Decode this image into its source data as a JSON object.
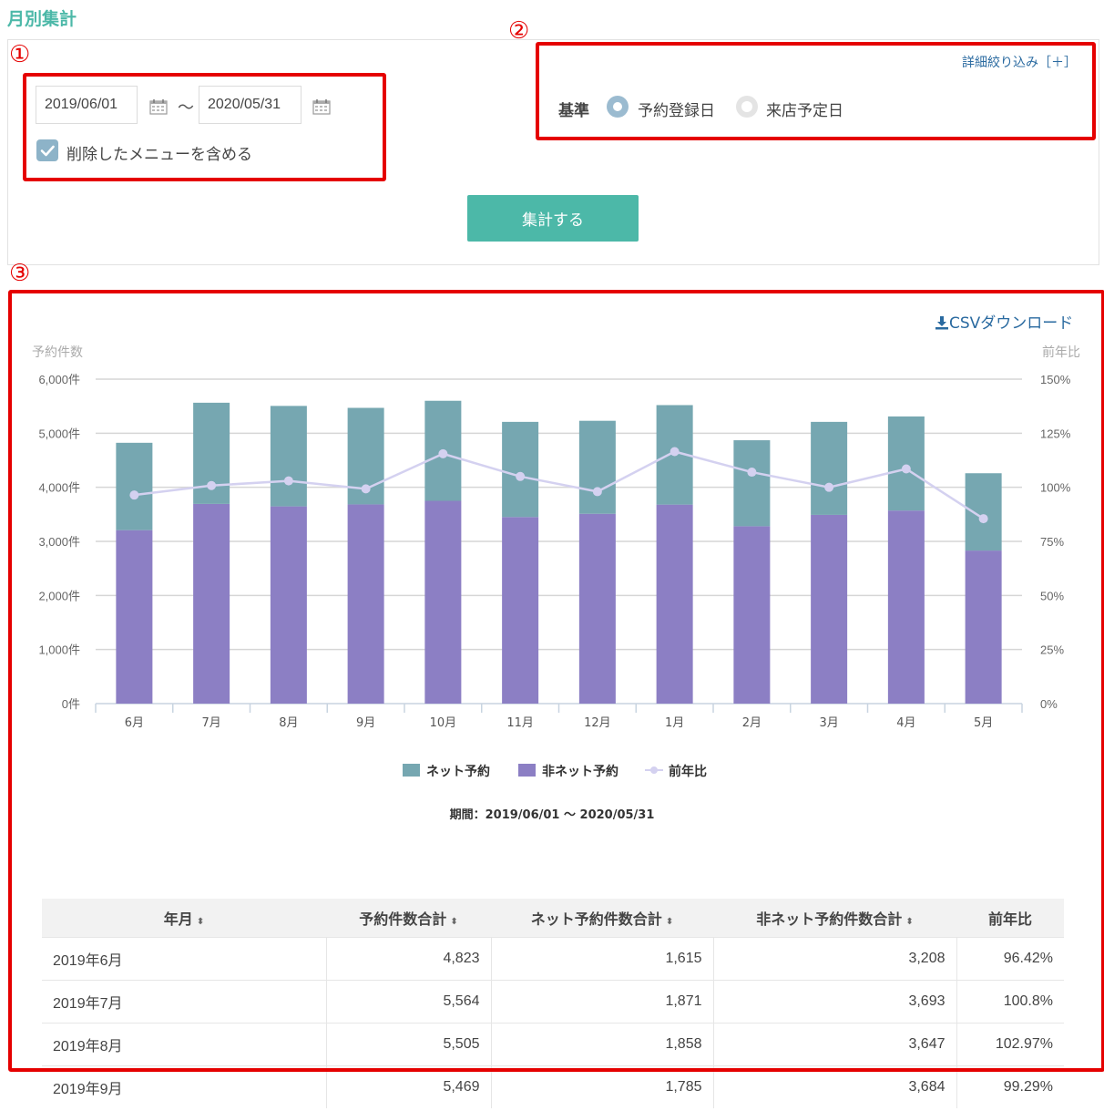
{
  "page": {
    "title": "月別集計"
  },
  "annotations": {
    "n1": "①",
    "n2": "②",
    "n3": "③"
  },
  "filter": {
    "start_date": "2019/06/01",
    "end_date": "2020/05/31",
    "separator": "～",
    "include_deleted_label": "削除したメニューを含める",
    "include_deleted_checked": true,
    "detail_link": "詳細絞り込み［＋］",
    "basis_label": "基準",
    "basis_options": [
      "予約登録日",
      "来店予定日"
    ],
    "basis_selected": "予約登録日",
    "submit_label": "集計する"
  },
  "csv_download_label": "CSVダウンロード",
  "colors": {
    "accent": "#4cb8a8",
    "net": "#76a7b1",
    "nonnet": "#8c7fc4",
    "ratio": "#d4d1f0",
    "annotation": "#e50000"
  },
  "chart_data": {
    "type": "bar",
    "stacked": true,
    "title": "",
    "subtitle": "期間：2019/06/01 ～ 2020/05/31",
    "ylabel": "予約件数",
    "y2label": "前年比",
    "ylim": [
      0,
      6000
    ],
    "y2lim": [
      0,
      150
    ],
    "yticks": [
      "0件",
      "1,000件",
      "2,000件",
      "3,000件",
      "4,000件",
      "5,000件",
      "6,000件"
    ],
    "y2ticks": [
      "0%",
      "25%",
      "50%",
      "75%",
      "100%",
      "125%",
      "150%"
    ],
    "categories": [
      "6月",
      "7月",
      "8月",
      "9月",
      "10月",
      "11月",
      "12月",
      "1月",
      "2月",
      "3月",
      "4月",
      "5月"
    ],
    "series": [
      {
        "name": "非ネット予約",
        "type": "bar",
        "values": [
          3208,
          3693,
          3647,
          3684,
          3750,
          3450,
          3510,
          3680,
          3280,
          3490,
          3570,
          2830
        ]
      },
      {
        "name": "ネット予約",
        "type": "bar",
        "values": [
          1615,
          1871,
          1858,
          1785,
          1850,
          1760,
          1720,
          1840,
          1590,
          1720,
          1740,
          1430
        ]
      },
      {
        "name": "前年比",
        "type": "line",
        "axis": "right",
        "values": [
          96.42,
          100.8,
          102.97,
          99.29,
          115.5,
          105,
          98,
          116.5,
          107,
          100,
          108.5,
          85.5
        ]
      }
    ],
    "legend_order": [
      "ネット予約",
      "非ネット予約",
      "前年比"
    ],
    "legend_position": "bottom",
    "grid": true
  },
  "table": {
    "headers": [
      "年月",
      "予約件数合計",
      "ネット予約件数合計",
      "非ネット予約件数合計",
      "前年比"
    ],
    "sortable": [
      true,
      true,
      true,
      true,
      false
    ],
    "sort_icon": "⬍",
    "rows": [
      [
        "2019年6月",
        "4,823",
        "1,615",
        "3,208",
        "96.42%"
      ],
      [
        "2019年7月",
        "5,564",
        "1,871",
        "3,693",
        "100.8%"
      ],
      [
        "2019年8月",
        "5,505",
        "1,858",
        "3,647",
        "102.97%"
      ],
      [
        "2019年9月",
        "5,469",
        "1,785",
        "3,684",
        "99.29%"
      ]
    ]
  }
}
